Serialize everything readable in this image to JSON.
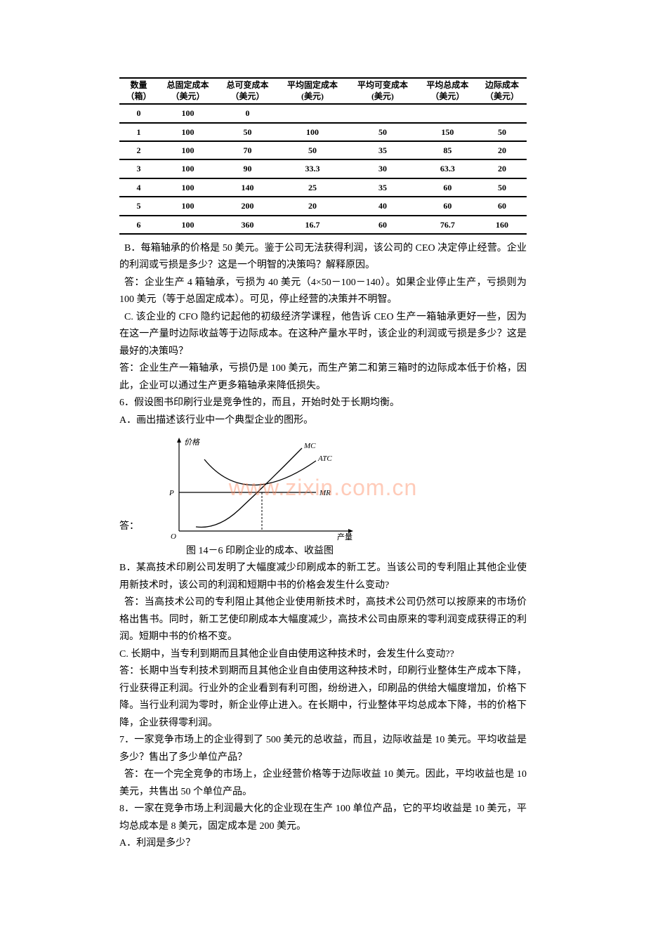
{
  "table": {
    "headers": [
      {
        "line1": "数量",
        "line2": "（箱）"
      },
      {
        "line1": "总固定成本",
        "line2": "（美元）"
      },
      {
        "line1": "总可变成本",
        "line2": "（美元）"
      },
      {
        "line1": "平均固定成本",
        "line2": "(美元)"
      },
      {
        "line1": "平均可变成本",
        "line2": "(美元)"
      },
      {
        "line1": "平均总成本",
        "line2": "（美元）"
      },
      {
        "line1": "边际成本",
        "line2": "（美元）"
      }
    ],
    "rows": [
      [
        "0",
        "100",
        "0",
        "",
        "",
        "",
        ""
      ],
      [
        "1",
        "100",
        "50",
        "100",
        "50",
        "150",
        "50"
      ],
      [
        "2",
        "100",
        "70",
        "50",
        "35",
        "85",
        "20"
      ],
      [
        "3",
        "100",
        "90",
        "33.3",
        "30",
        "63.3",
        "20"
      ],
      [
        "4",
        "100",
        "140",
        "25",
        "35",
        "60",
        "50"
      ],
      [
        "5",
        "100",
        "200",
        "20",
        "40",
        "60",
        "60"
      ],
      [
        "6",
        "100",
        "360",
        "16.7",
        "60",
        "76.7",
        "160"
      ]
    ],
    "border_color": "#000000",
    "font_size": 12
  },
  "textB": {
    "question": "B．每箱轴承的价格是 50 美元。鉴于公司无法获得利润，该公司的 CEO 决定停止经营。企业的利润或亏损是多少？这是一个明智的决策吗？解释原因。",
    "answer": "答：企业生产 4 箱轴承，亏损为 40 美元（4×50－100－140）。如果企业停止生产，亏损则为 100 美元（等于总固定成本）。可见，停止经营的决策并不明智。"
  },
  "textC": {
    "question": "C. 该企业的 CFO 隐约记起他的初级经济学课程，他告诉 CEO 生产一箱轴承更好一些，因为在这一产量时边际收益等于边际成本。在这种产量水平时，该企业的利润或亏损是多少？这是最好的决策吗？",
    "answer": "答：企业生产一箱轴承，亏损仍是 100 美元，而生产第二和第三箱时的边际成本低于价格，因此，企业可以通过生产更多箱轴承来降低损失。"
  },
  "q6": {
    "stem": "6．假设图书印刷行业是竞争性的，而且，开始时处于长期均衡。",
    "partA": "A．画出描述该行业中一个典型企业的图形。"
  },
  "chart": {
    "answer_label": "答：",
    "caption": "图 14－6 印刷企业的成本、收益图",
    "y_label": "价格",
    "x_label": "产量",
    "origin_label": "O",
    "mc_label": "MC",
    "atc_label": "ATC",
    "p_label": "P",
    "mr_label": "MR",
    "axis_color": "#000000",
    "line_color": "#000000",
    "font_size": 11,
    "watermark": "www.zixin.com.cn",
    "watermark_color": "rgba(255,140,100,0.45)"
  },
  "partB": {
    "question": "B．某高技术印刷公司发明了大幅度减少印刷成本的新工艺。当该公司的专利阻止其他企业使用新技术时，该公司的利润和短期中书的价格会发生什么变动?",
    "answer": "答：当高技术公司的专利阻止其他企业使用新技术时，高技术公司仍然可以按原来的市场价格出售书。同时，新工艺使印刷成本大幅度减少，高技术公司由原来的零利润变成获得正的利润。短期中书的价格不变。"
  },
  "partC": {
    "question": "C. 长期中，当专利到期而且其他企业自由使用这种技术时，会发生什么变动??",
    "answer": "答：长期中当专利技术到期而且其他企业自由使用这种技术时，印刷行业整体生产成本下降，行业获得正利润。行业外的企业看到有利可图，纷纷进入，印刷品的供给大幅度增加，价格下降。当行业利润为零时，新企业停止进入。在长期中，行业整体平均总成本下降，书的价格下降，企业获得零利润。"
  },
  "q7": {
    "question": "7．一家竞争市场上的企业得到了 500 美元的总收益，而且，边际收益是 10 美元。平均收益是多少？售出了多少单位产品？",
    "answer": "答：在一个完全竞争的市场上，企业经营价格等于边际收益 10 美元。因此，平均收益也是 10 美元，共售出 50 个单位产品。"
  },
  "q8": {
    "stem": "8．一家在竞争市场上利润最大化的企业现在生产 100 单位产品，它的平均收益是 10 美元，平均总成本是 8 美元，固定成本是 200 美元。",
    "partA": "A．利润是多少？"
  }
}
